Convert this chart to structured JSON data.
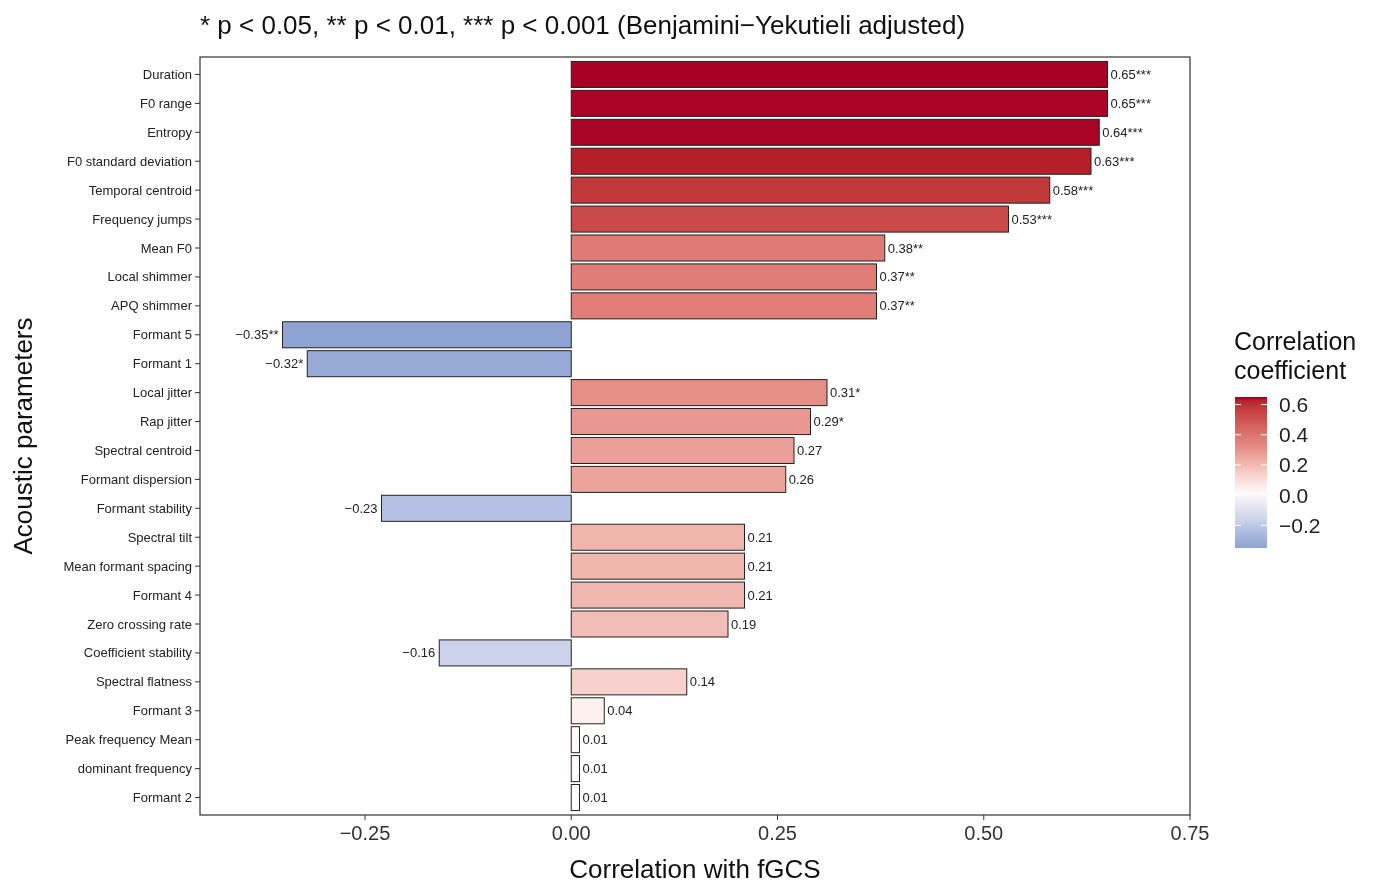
{
  "chart_data": {
    "type": "bar",
    "orientation": "horizontal",
    "title": "* p < 0.05, ** p < 0.01, *** p < 0.001 (Benjamini−Yekutieli adjusted)",
    "xlabel": "Correlation with fGCS",
    "ylabel": "Acoustic parameters",
    "clabel": "Correlation coefficient",
    "categories": [
      "Duration",
      "F0 range",
      "Entropy",
      "F0 standard deviation",
      "Temporal centroid",
      "Frequency jumps",
      "Mean F0",
      "Local shimmer",
      "APQ shimmer",
      "Formant 5",
      "Formant 1",
      "Local jitter",
      "Rap jitter",
      "Spectral centroid",
      "Formant dispersion",
      "Formant stability",
      "Spectral tilt",
      "Mean formant spacing",
      "Formant 4",
      "Zero crossing rate",
      "Coefficient stability",
      "Spectral flatness",
      "Formant 3",
      "Peak frequency Mean",
      "dominant frequency",
      "Formant 2"
    ],
    "values": [
      0.65,
      0.65,
      0.64,
      0.63,
      0.58,
      0.53,
      0.38,
      0.37,
      0.37,
      -0.35,
      -0.32,
      0.31,
      0.29,
      0.27,
      0.26,
      -0.23,
      0.21,
      0.21,
      0.21,
      0.19,
      -0.16,
      0.14,
      0.04,
      0.01,
      0.01,
      0.01
    ],
    "value_labels": [
      "0.65***",
      "0.65***",
      "0.64***",
      "0.63***",
      "0.58***",
      "0.53***",
      "0.38**",
      "0.37**",
      "0.37**",
      "−0.35**",
      "−0.32*",
      "0.31*",
      "0.29*",
      "0.27",
      "0.26",
      "−0.23",
      "0.21",
      "0.21",
      "0.21",
      "0.19",
      "−0.16",
      "0.14",
      "0.04",
      "0.01",
      "0.01",
      "0.01"
    ],
    "colors": [
      "#a90025",
      "#aa0326",
      "#ab0526",
      "#b41f2a",
      "#c1393a",
      "#c94a48",
      "#df7b74",
      "#e07d76",
      "#e07e77",
      "#8ea4d4",
      "#97abd6",
      "#e58f86",
      "#e89890",
      "#eaa098",
      "#eba49c",
      "#b3c0e3",
      "#f0b6ae",
      "#f0b7af",
      "#f0b8b0",
      "#f2bdb6",
      "#cdd3ea",
      "#f7d1cc",
      "#fdf1ef",
      "#fefafa",
      "#fefafa",
      "#fefbfb"
    ],
    "xlim": [
      -0.45,
      0.75
    ],
    "xticks": [
      {
        "value": -0.25,
        "label": "−0.25"
      },
      {
        "value": 0,
        "label": "0.00"
      },
      {
        "value": 0.25,
        "label": "0.25"
      },
      {
        "value": 0.5,
        "label": "0.50"
      },
      {
        "value": 0.75,
        "label": "0.75"
      }
    ],
    "clim": [
      -0.35,
      0.65
    ],
    "cticks": [
      {
        "value": 0.6,
        "label": "0.6"
      },
      {
        "value": 0.4,
        "label": "0.4"
      },
      {
        "value": 0.2,
        "label": "0.2"
      },
      {
        "value": 0,
        "label": "0.0"
      },
      {
        "value": -0.2,
        "label": "−0.2"
      }
    ]
  }
}
